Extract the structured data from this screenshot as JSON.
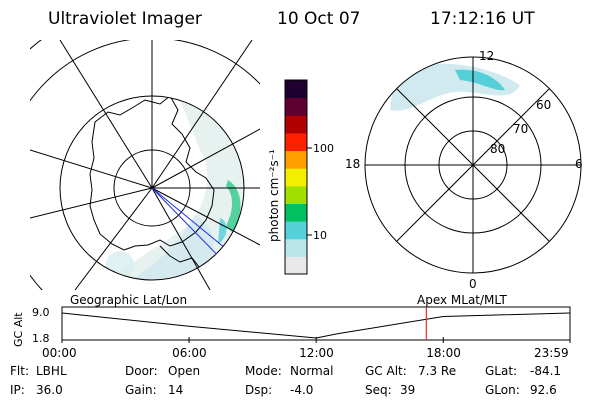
{
  "header": {
    "title": "Ultraviolet Imager",
    "date": "10 Oct 07",
    "time": "17:12:16 UT"
  },
  "left_map": {
    "label": "Geographic Lat/Lon"
  },
  "right_map": {
    "label": "Apex MLat/MLT",
    "mlt_labels": [
      "12",
      "18",
      "6",
      "0"
    ],
    "lat_labels": [
      "60",
      "70",
      "80"
    ]
  },
  "colorbar": {
    "unit": "photon cm⁻²s⁻¹",
    "ticks": [
      "100",
      "10"
    ],
    "colors": [
      "#e8e8e8",
      "#b8e6ea",
      "#55d0d8",
      "#00c060",
      "#a0e000",
      "#f0f000",
      "#ffa000",
      "#ff2000",
      "#b00000",
      "#600030",
      "#200030"
    ]
  },
  "chart_data": {
    "type": "line",
    "title": "",
    "xlabel": "",
    "ylabel": "GC Alt",
    "x_ticks": [
      "00:00",
      "06:00",
      "12:00",
      "18:00",
      "23:59"
    ],
    "y_ticks": [
      "9.0",
      "1.8"
    ],
    "ylim": [
      1.8,
      9.0
    ],
    "series": [
      {
        "x": [
          "00:00",
          "06:00",
          "12:00",
          "13:00",
          "18:00",
          "23:59"
        ],
        "values": [
          9.0,
          5.2,
          1.8,
          3.0,
          8.0,
          9.0
        ]
      }
    ],
    "marker_time": "17:12",
    "marker_color": "#e03030"
  },
  "footer": {
    "rows": [
      [
        {
          "label": "Flt:",
          "value": "LBHL"
        },
        {
          "label": "Door:",
          "value": "Open"
        },
        {
          "label": "Mode:",
          "value": "Normal"
        },
        {
          "label": "GC Alt:",
          "value": "7.3 Re"
        },
        {
          "label": "GLat:",
          "value": "-84.1"
        }
      ],
      [
        {
          "label": "IP:",
          "value": "36.0"
        },
        {
          "label": "Gain:",
          "value": "14"
        },
        {
          "label": "Dsp:",
          "value": "-4.0"
        },
        {
          "label": "Seq:",
          "value": "39"
        },
        {
          "label": "GLon:",
          "value": "92.6"
        }
      ]
    ]
  }
}
